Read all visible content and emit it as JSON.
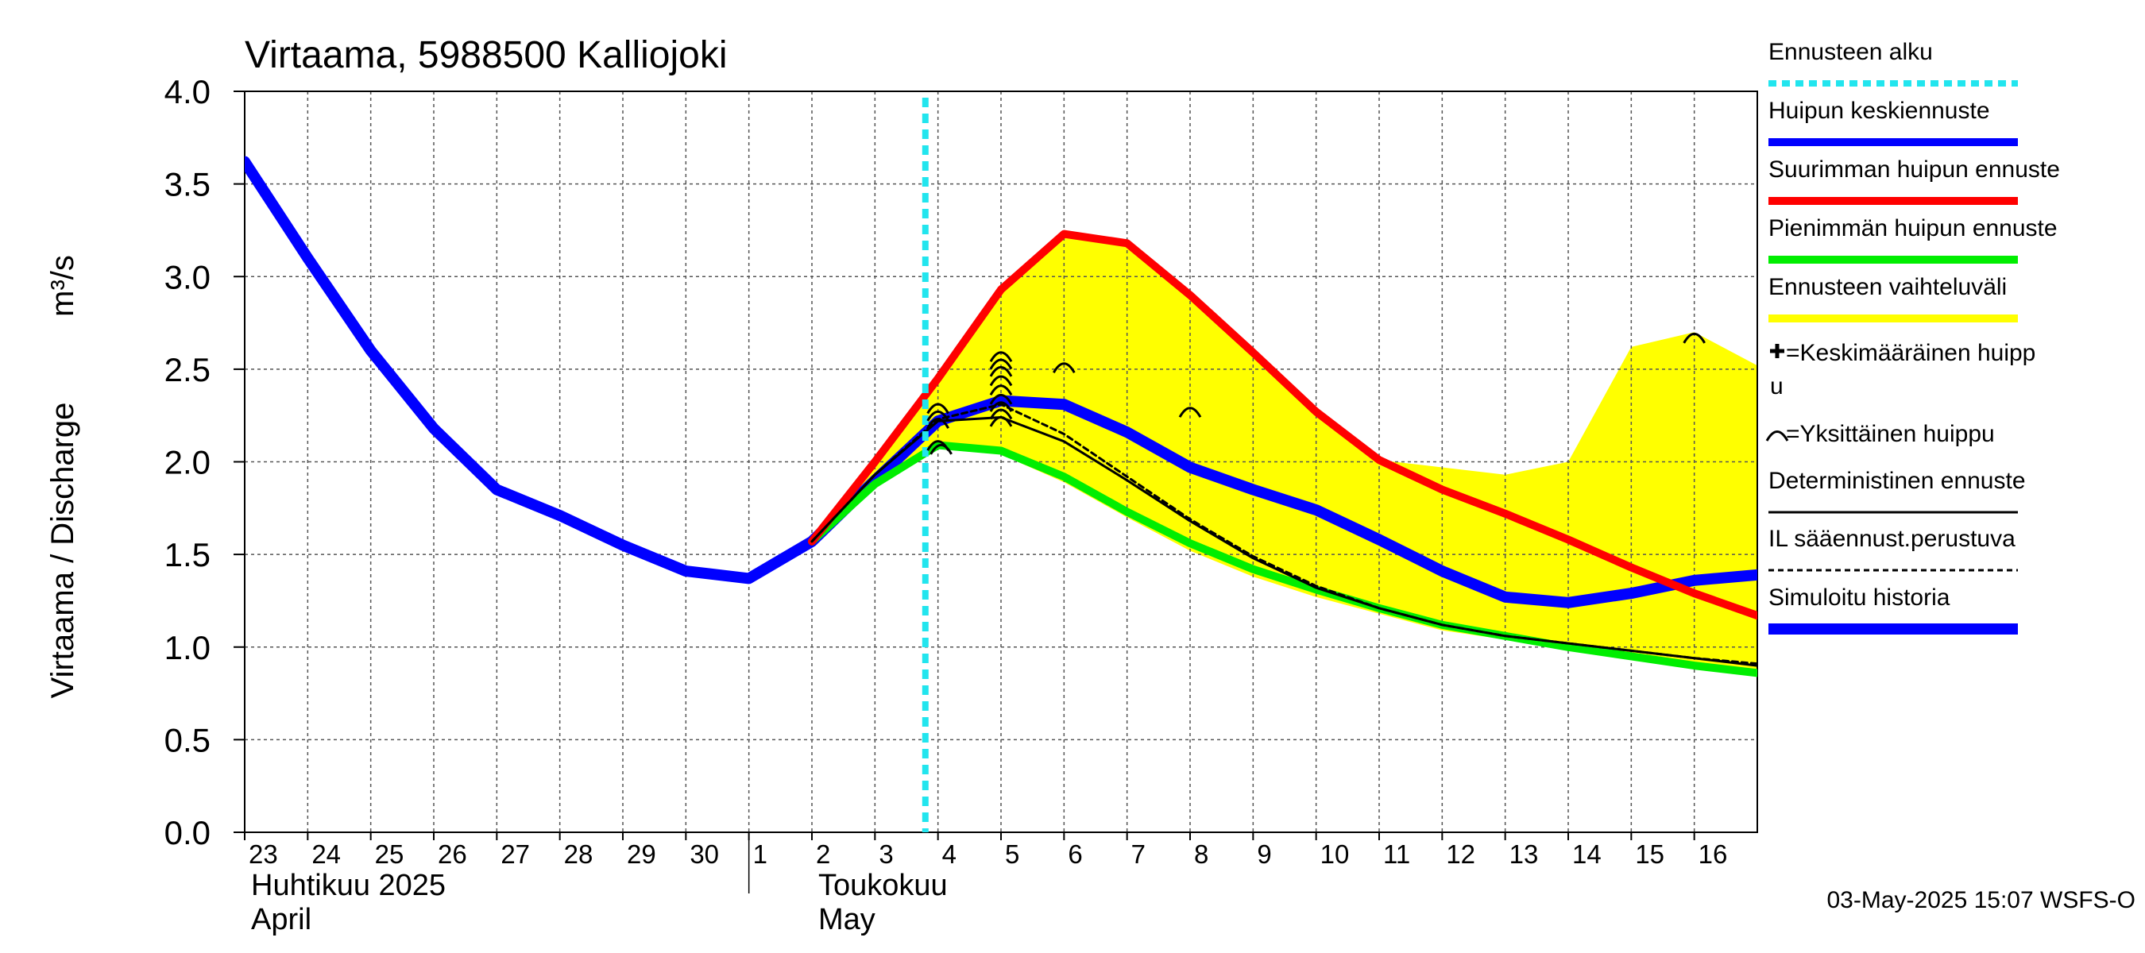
{
  "chart_data": {
    "type": "line",
    "title": "Virtaama, 5988500 Kalliojoki",
    "ylabel": "Virtaama / Discharge",
    "yunit": "m³/s",
    "ylim": [
      0,
      4
    ],
    "yticks": [
      0.0,
      0.5,
      1.0,
      1.5,
      2.0,
      2.5,
      3.0,
      3.5,
      4.0
    ],
    "ytick_labels": [
      "0.0",
      "0.5",
      "1.0",
      "1.5",
      "2.0",
      "2.5",
      "3.0",
      "3.5",
      "4.0"
    ],
    "xlim": [
      23,
      47
    ],
    "x_note": "x = day index, 23 = 23 April 2025, 31 = 1 May 2025",
    "day_labels": [
      {
        "x": 23,
        "label": "23"
      },
      {
        "x": 24,
        "label": "24"
      },
      {
        "x": 25,
        "label": "25"
      },
      {
        "x": 26,
        "label": "26"
      },
      {
        "x": 27,
        "label": "27"
      },
      {
        "x": 28,
        "label": "28"
      },
      {
        "x": 29,
        "label": "29"
      },
      {
        "x": 30,
        "label": "30"
      },
      {
        "x": 31,
        "label": "1"
      },
      {
        "x": 32,
        "label": "2"
      },
      {
        "x": 33,
        "label": "3"
      },
      {
        "x": 34,
        "label": "4"
      },
      {
        "x": 35,
        "label": "5"
      },
      {
        "x": 36,
        "label": "6"
      },
      {
        "x": 37,
        "label": "7"
      },
      {
        "x": 38,
        "label": "8"
      },
      {
        "x": 39,
        "label": "9"
      },
      {
        "x": 40,
        "label": "10"
      },
      {
        "x": 41,
        "label": "11"
      },
      {
        "x": 42,
        "label": "12"
      },
      {
        "x": 43,
        "label": "13"
      },
      {
        "x": 44,
        "label": "14"
      },
      {
        "x": 45,
        "label": "15"
      },
      {
        "x": 46,
        "label": "16"
      }
    ],
    "month_labels": [
      {
        "x": 23,
        "line1": "Huhtikuu  2025",
        "line2": "April"
      },
      {
        "x": 32,
        "line1": "Toukokuu",
        "line2": "May"
      }
    ],
    "month_boundary_x": 31,
    "forecast_start_x": 33.8,
    "series": [
      {
        "name": "Simuloitu historia",
        "color": "#0000ff",
        "width": 14,
        "x": [
          23,
          24,
          25,
          26,
          27,
          28,
          29,
          30,
          31,
          32,
          33,
          34,
          35,
          36,
          37,
          38,
          39,
          40,
          41,
          42,
          43,
          44,
          45,
          46,
          47
        ],
        "values": [
          3.62,
          3.1,
          2.6,
          2.18,
          1.85,
          1.71,
          1.55,
          1.41,
          1.37,
          1.57,
          1.9,
          2.22,
          2.33,
          2.31,
          2.16,
          1.97,
          1.85,
          1.74,
          1.58,
          1.41,
          1.27,
          1.24,
          1.29,
          1.36,
          1.39
        ]
      },
      {
        "name": "Suurimman huipun ennuste",
        "color": "#ff0000",
        "width": 10,
        "x": [
          32,
          33,
          34,
          35,
          36,
          37,
          38,
          39,
          40,
          41,
          42,
          43,
          44,
          45,
          46,
          47
        ],
        "values": [
          1.57,
          2.0,
          2.45,
          2.93,
          3.23,
          3.18,
          2.9,
          2.59,
          2.27,
          2.01,
          1.85,
          1.72,
          1.58,
          1.43,
          1.29,
          1.17
        ]
      },
      {
        "name": "Pienimmän huipun ennuste",
        "color": "#00ee00",
        "width": 10,
        "x": [
          32,
          33,
          34,
          35,
          36,
          37,
          38,
          39,
          40,
          41,
          42,
          43,
          44,
          45,
          46,
          47
        ],
        "values": [
          1.57,
          1.88,
          2.09,
          2.06,
          1.92,
          1.73,
          1.56,
          1.42,
          1.31,
          1.21,
          1.12,
          1.06,
          1.0,
          0.95,
          0.9,
          0.86
        ]
      },
      {
        "name": "Deterministinen ennuste",
        "color": "#000000",
        "width": 3,
        "x": [
          32,
          33,
          34,
          35,
          36,
          37,
          38,
          39,
          40,
          41,
          42,
          43,
          44,
          45,
          46,
          47
        ],
        "values": [
          1.57,
          1.93,
          2.22,
          2.24,
          2.11,
          1.9,
          1.68,
          1.48,
          1.32,
          1.21,
          1.12,
          1.06,
          1.02,
          0.98,
          0.94,
          0.9
        ]
      },
      {
        "name": "IL sääennust.perustuva",
        "color": "#000000",
        "width": 3,
        "dash": true,
        "x": [
          32,
          33,
          34,
          35,
          36,
          37,
          38,
          39,
          40,
          41,
          42,
          43,
          44,
          45,
          46,
          47
        ],
        "values": [
          1.57,
          1.93,
          2.23,
          2.31,
          2.15,
          1.92,
          1.69,
          1.49,
          1.33,
          1.21,
          1.12,
          1.06,
          1.02,
          0.98,
          0.94,
          0.91
        ]
      }
    ],
    "range_band": {
      "name": "Ennusteen vaihteluväli",
      "color": "#ffff00",
      "x": [
        32,
        33,
        34,
        35,
        36,
        37,
        38,
        39,
        40,
        41,
        42,
        43,
        44,
        45,
        46,
        47
      ],
      "upper": [
        1.57,
        2.0,
        2.45,
        2.93,
        3.23,
        3.18,
        2.9,
        2.59,
        2.27,
        2.01,
        1.97,
        1.93,
        2.0,
        2.62,
        2.7,
        2.52
      ],
      "lower": [
        1.57,
        1.86,
        2.07,
        2.04,
        1.89,
        1.7,
        1.52,
        1.38,
        1.27,
        1.18,
        1.09,
        1.04,
        0.99,
        0.94,
        0.89,
        0.84
      ]
    },
    "single_peaks_label": "Yksittäinen huippu",
    "single_peaks": [
      {
        "x": 34.0,
        "y": 2.3
      },
      {
        "x": 34.0,
        "y": 2.26
      },
      {
        "x": 34.0,
        "y": 2.22
      },
      {
        "x": 34.0,
        "y": 2.1
      },
      {
        "x": 34.05,
        "y": 2.08
      },
      {
        "x": 35.0,
        "y": 2.58
      },
      {
        "x": 35.0,
        "y": 2.54
      },
      {
        "x": 35.0,
        "y": 2.5
      },
      {
        "x": 35.0,
        "y": 2.45
      },
      {
        "x": 35.0,
        "y": 2.4
      },
      {
        "x": 35.0,
        "y": 2.35
      },
      {
        "x": 35.0,
        "y": 2.31
      },
      {
        "x": 35.0,
        "y": 2.27
      },
      {
        "x": 35.0,
        "y": 2.23
      },
      {
        "x": 36.0,
        "y": 2.52
      },
      {
        "x": 38.0,
        "y": 2.28
      },
      {
        "x": 46.0,
        "y": 2.68
      }
    ],
    "legend": [
      {
        "label": "Ennusteen alku",
        "color": "#22e5ee",
        "style": "dotted"
      },
      {
        "label": "Huipun keskiennuste",
        "color": "#0000ff",
        "style": "thick"
      },
      {
        "label": "Suurimman huipun ennuste",
        "color": "#ff0000",
        "style": "thick"
      },
      {
        "label": "Pienimmän huipun ennuste",
        "color": "#00ee00",
        "style": "thick"
      },
      {
        "label": "Ennusteen vaihteluväli",
        "color": "#ffff00",
        "style": "thick"
      },
      {
        "label": "=Keskimääräinen huipp",
        "label2": "u",
        "color": "#000000",
        "style": "plus"
      },
      {
        "label": "=Yksittäinen huippu",
        "color": "#000000",
        "style": "arc"
      },
      {
        "label": "Deterministinen ennuste",
        "color": "#000000",
        "style": "thin"
      },
      {
        "label": "IL sääennust.perustuva",
        "color": "#000000",
        "style": "dashed"
      },
      {
        "label": "Simuloitu historia",
        "color": "#0000ff",
        "style": "thickest"
      }
    ],
    "footer": "03-May-2025 15:07 WSFS-O"
  }
}
